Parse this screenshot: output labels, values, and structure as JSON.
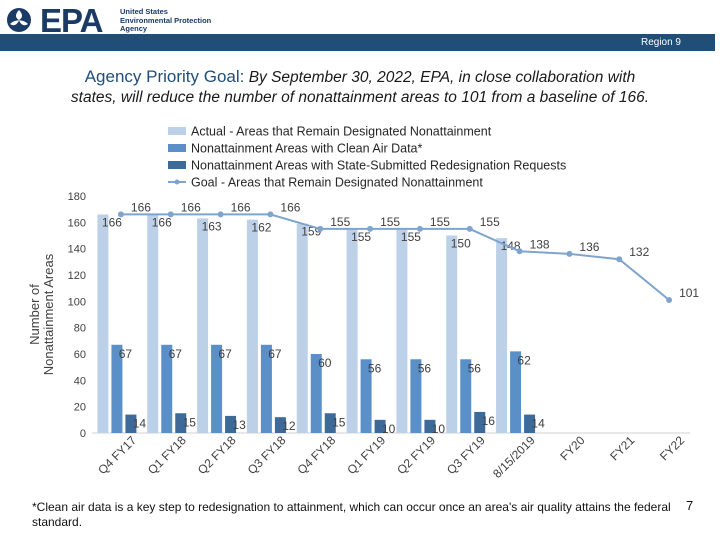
{
  "header": {
    "logo_text": "EPA",
    "logo_sub": [
      "United States",
      "Environmental Protection",
      "Agency"
    ],
    "region": "Region 9"
  },
  "headline": {
    "title": "Agency Priority Goal:",
    "text_line1": "By September 30, 2022, EPA, in close collaboration with",
    "text_line2": "states, will reduce the number of nonattainment areas to 101 from a baseline of 166."
  },
  "footnote": "*Clean air data is a key step to redesignation to attainment, which can occur once an area's air quality attains the federal standard.",
  "page_number": "7",
  "colors": {
    "actual": "#bcd0e8",
    "clean": "#5b8fc7",
    "state": "#3e6a99",
    "goal": "#7fa5cf",
    "brand": "#1f4e79"
  },
  "chart_data": {
    "type": "bar",
    "ylabel": "Number of Nonattainment Areas",
    "ylim": [
      0,
      180
    ],
    "yticks": [
      0,
      20,
      40,
      60,
      80,
      100,
      120,
      140,
      160,
      180
    ],
    "categories": [
      "Q4 FY17",
      "Q1 FY18",
      "Q2 FY18",
      "Q3 FY18",
      "Q4 FY18",
      "Q1 FY19",
      "Q2 FY19",
      "Q3 FY19",
      "8/15/2019",
      "FY20",
      "FY21",
      "FY22"
    ],
    "legend_placement": "top",
    "series": [
      {
        "name": "Actual - Areas that Remain Designated Nonattainment",
        "kind": "bar",
        "values": [
          166,
          166,
          163,
          162,
          159,
          155,
          155,
          150,
          148,
          null,
          null,
          null
        ]
      },
      {
        "name": "Nonattainment Areas with Clean Air Data*",
        "kind": "bar",
        "values": [
          67,
          67,
          67,
          67,
          60,
          56,
          56,
          56,
          62,
          null,
          null,
          null
        ]
      },
      {
        "name": "Nonattainment Areas with State-Submitted Redesignation Requests",
        "kind": "bar",
        "values": [
          14,
          15,
          13,
          12,
          15,
          10,
          10,
          16,
          14,
          null,
          null,
          null
        ]
      },
      {
        "name": "Goal - Areas that Remain Designated Nonattainment",
        "kind": "line",
        "values": [
          166,
          166,
          166,
          166,
          155,
          155,
          155,
          155,
          138,
          136,
          132,
          101
        ]
      }
    ]
  }
}
